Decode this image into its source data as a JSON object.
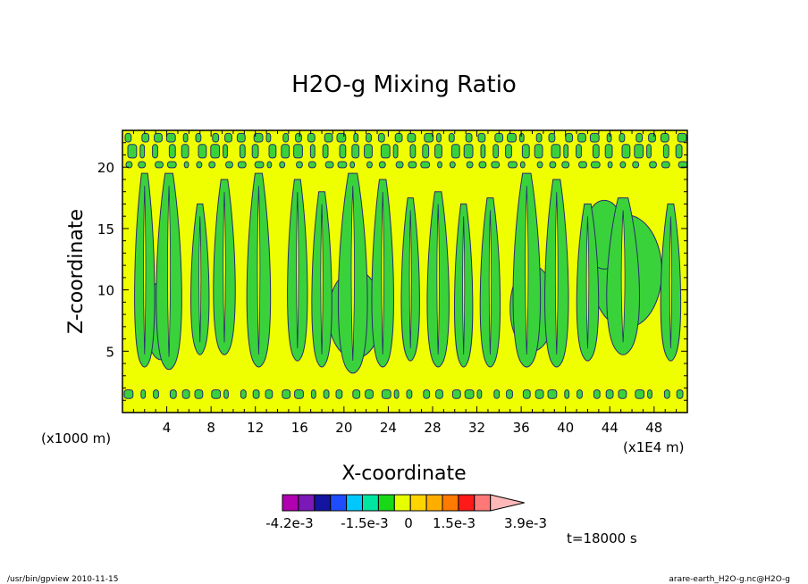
{
  "chart_data": {
    "type": "heatmap",
    "title": "H2O-g Mixing Ratio",
    "xlabel": "X-coordinate",
    "ylabel": "Z-coordinate",
    "x_unit_left": "(x1000 m)",
    "x_unit_right": "(x1E4 m)",
    "xlim": [
      0,
      51
    ],
    "ylim": [
      0,
      23
    ],
    "x_ticks": [
      4,
      8,
      12,
      16,
      20,
      24,
      28,
      32,
      36,
      40,
      44,
      48
    ],
    "y_ticks": [
      5,
      10,
      15,
      20
    ],
    "time_label": "t=18000 s",
    "colorbar": {
      "colors": [
        "#b000b0",
        "#7a18b8",
        "#1414a0",
        "#1e4cff",
        "#00c8ff",
        "#00e6a0",
        "#18d818",
        "#e6ff00",
        "#ffd400",
        "#ffae00",
        "#ff7a00",
        "#ff1a1a",
        "#ff7878",
        "#ffb8b8"
      ],
      "labels": [
        "-4.2e-3",
        "-1.5e-3",
        "0",
        "1.5e-3",
        "3.9e-3"
      ]
    },
    "field_colors": {
      "background": "#f0ff00",
      "patch": "#3ad23a",
      "contour": "#2a2a70"
    },
    "plumes": [
      {
        "x": 2.0,
        "w": 2.2,
        "base": 4.0,
        "top": 19.5
      },
      {
        "x": 4.2,
        "w": 2.8,
        "base": 3.8,
        "top": 19.5
      },
      {
        "x": 7.0,
        "w": 2.0,
        "base": 5.0,
        "top": 17.0
      },
      {
        "x": 9.2,
        "w": 2.4,
        "base": 5.0,
        "top": 19.0
      },
      {
        "x": 12.3,
        "w": 2.6,
        "base": 4.0,
        "top": 19.5
      },
      {
        "x": 15.8,
        "w": 2.2,
        "base": 4.5,
        "top": 19.0
      },
      {
        "x": 18.0,
        "w": 2.2,
        "base": 4.0,
        "top": 18.0
      },
      {
        "x": 20.8,
        "w": 3.2,
        "base": 3.5,
        "top": 19.5
      },
      {
        "x": 23.5,
        "w": 2.4,
        "base": 4.0,
        "top": 19.0
      },
      {
        "x": 26.0,
        "w": 2.0,
        "base": 4.5,
        "top": 17.5
      },
      {
        "x": 28.5,
        "w": 2.4,
        "base": 4.0,
        "top": 18.0
      },
      {
        "x": 30.8,
        "w": 2.0,
        "base": 4.0,
        "top": 17.0
      },
      {
        "x": 33.2,
        "w": 2.2,
        "base": 4.0,
        "top": 17.5
      },
      {
        "x": 36.5,
        "w": 3.0,
        "base": 4.0,
        "top": 19.5
      },
      {
        "x": 39.2,
        "w": 2.6,
        "base": 4.0,
        "top": 19.0
      },
      {
        "x": 42.0,
        "w": 2.4,
        "base": 4.5,
        "top": 17.0
      },
      {
        "x": 45.2,
        "w": 3.6,
        "base": 5.0,
        "top": 17.5
      },
      {
        "x": 49.5,
        "w": 2.2,
        "base": 4.5,
        "top": 17.0
      }
    ],
    "blobs": [
      {
        "x": 45.5,
        "y": 11.5,
        "rx": 3.2,
        "ry": 4.6
      },
      {
        "x": 43.5,
        "y": 14.5,
        "rx": 1.8,
        "ry": 2.8
      },
      {
        "x": 21.0,
        "y": 8.0,
        "rx": 2.4,
        "ry": 3.6
      },
      {
        "x": 3.5,
        "y": 7.5,
        "rx": 1.4,
        "ry": 3.2
      },
      {
        "x": 37.0,
        "y": 8.5,
        "rx": 2.0,
        "ry": 3.5
      }
    ],
    "bands": [
      {
        "y": 1.5,
        "h": 0.7
      },
      {
        "y": 20.2,
        "h": 0.5
      },
      {
        "y": 21.3,
        "h": 1.1
      },
      {
        "y": 22.4,
        "h": 0.7
      }
    ]
  },
  "footer": {
    "left": "/usr/bin/gpview   2010-11-15",
    "right": "arare-earth_H2O-g.nc@H2O-g"
  }
}
